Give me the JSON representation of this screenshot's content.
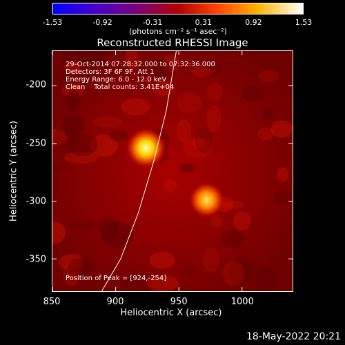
{
  "chart_data": {
    "type": "heatmap",
    "title": "Reconstructed RHESSI Image",
    "xlabel": "Heliocentric X (arcsec)",
    "ylabel": "Heliocentric Y (arcsec)",
    "xlim": [
      850,
      1040
    ],
    "ylim": [
      -378,
      -170
    ],
    "x_ticks": [
      "850",
      "900",
      "950",
      "1000"
    ],
    "y_ticks": [
      "-200",
      "-250",
      "-300",
      "-350"
    ],
    "colorbar": {
      "ticks": [
        "-1.53",
        "-0.92",
        "-0.31",
        "0.31",
        "0.92",
        "1.53"
      ],
      "range": [
        -1.53,
        1.53
      ],
      "unit": "(photons cm⁻² s⁻¹ asec⁻²)",
      "colors": [
        "#0000ff",
        "#7d0078",
        "#b40000",
        "#ff4600",
        "#ffb400",
        "#ffffff"
      ]
    },
    "annotations": [
      "29-Oct-2014 07:28:32.000 to 07:32:36.000",
      "Detectors: 3F 6F 9F, Att 1",
      "Energy Range: 6.0 - 12.0 keV",
      "Clean    Total counts: 3.41E+04"
    ],
    "peak_label": "Position of Peak = [924,-254]",
    "sources": [
      {
        "x": 924,
        "y": -254,
        "peak": 1.53
      },
      {
        "x": 972,
        "y": -299,
        "peak": 1.2
      }
    ],
    "limb_arc": [
      [
        889,
        -378
      ],
      [
        904,
        -350
      ],
      [
        918,
        -310
      ],
      [
        930,
        -266
      ],
      [
        940,
        -222
      ],
      [
        948,
        -170
      ]
    ],
    "grid": false
  },
  "footer": "18-May-2022 20:21"
}
